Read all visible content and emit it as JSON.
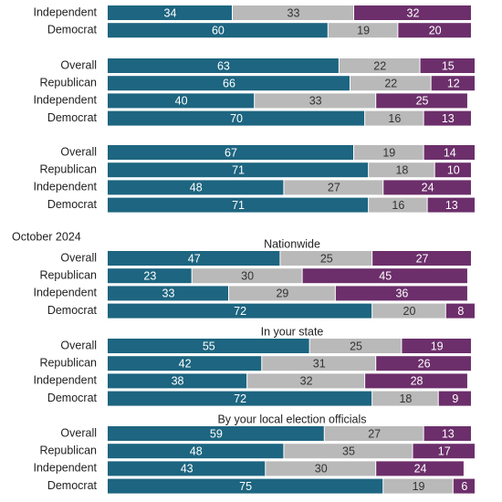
{
  "chart_data": {
    "type": "stacked-bar",
    "section_label": "October 2024",
    "xlim": [
      0,
      100
    ],
    "groups": [
      {
        "categories": [
          "Independent",
          "Democrat"
        ],
        "series": [
          {
            "color": "#1d6580",
            "values": [
              34,
              60
            ]
          },
          {
            "color": "#b9b9b9",
            "values": [
              33,
              19
            ]
          },
          {
            "color": "#6c2f6b",
            "values": [
              32,
              20
            ]
          }
        ]
      },
      {
        "categories": [
          "Overall",
          "Republican",
          "Independent",
          "Democrat"
        ],
        "series": [
          {
            "color": "#1d6580",
            "values": [
              63,
              66,
              40,
              70
            ]
          },
          {
            "color": "#b9b9b9",
            "values": [
              22,
              22,
              33,
              16
            ]
          },
          {
            "color": "#6c2f6b",
            "values": [
              15,
              12,
              25,
              13
            ]
          }
        ]
      },
      {
        "categories": [
          "Overall",
          "Republican",
          "Independent",
          "Democrat"
        ],
        "series": [
          {
            "color": "#1d6580",
            "values": [
              67,
              71,
              48,
              71
            ]
          },
          {
            "color": "#b9b9b9",
            "values": [
              19,
              18,
              27,
              16
            ]
          },
          {
            "color": "#6c2f6b",
            "values": [
              14,
              10,
              24,
              13
            ]
          }
        ]
      },
      {
        "title": "Nationwide",
        "categories": [
          "Overall",
          "Republican",
          "Independent",
          "Democrat"
        ],
        "series": [
          {
            "color": "#1d6580",
            "values": [
              47,
              23,
              33,
              72
            ]
          },
          {
            "color": "#b9b9b9",
            "values": [
              25,
              30,
              29,
              20
            ]
          },
          {
            "color": "#6c2f6b",
            "values": [
              27,
              45,
              36,
              8
            ]
          }
        ]
      },
      {
        "title": "In your state",
        "categories": [
          "Overall",
          "Republican",
          "Independent",
          "Democrat"
        ],
        "series": [
          {
            "color": "#1d6580",
            "values": [
              55,
              42,
              38,
              72
            ]
          },
          {
            "color": "#b9b9b9",
            "values": [
              25,
              31,
              32,
              18
            ]
          },
          {
            "color": "#6c2f6b",
            "values": [
              19,
              26,
              28,
              9
            ]
          }
        ]
      },
      {
        "title": "By your local election officials",
        "categories": [
          "Overall",
          "Republican",
          "Independent",
          "Democrat"
        ],
        "series": [
          {
            "color": "#1d6580",
            "values": [
              59,
              48,
              43,
              75
            ]
          },
          {
            "color": "#b9b9b9",
            "values": [
              27,
              35,
              30,
              19
            ]
          },
          {
            "color": "#6c2f6b",
            "values": [
              13,
              17,
              24,
              6
            ]
          }
        ]
      }
    ]
  }
}
